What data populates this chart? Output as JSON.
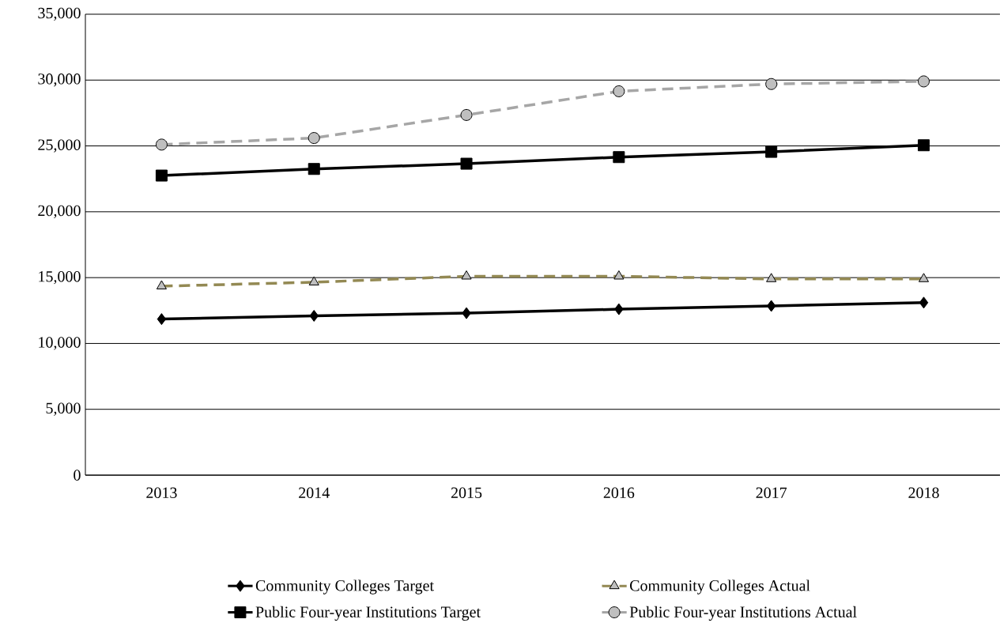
{
  "chart_data": {
    "type": "line",
    "categories": [
      "2013",
      "2014",
      "2015",
      "2016",
      "2017",
      "2018"
    ],
    "series": [
      {
        "name": "Community Colleges Target",
        "color": "#000000",
        "marker": "diamond",
        "line_style": "solid",
        "values": [
          11850,
          12100,
          12300,
          12600,
          12850,
          13100
        ]
      },
      {
        "name": "Community Colleges Actual",
        "color": "#938953",
        "marker": "triangle",
        "line_style": "dashed",
        "values": [
          14350,
          14650,
          15100,
          15100,
          14900,
          14900
        ]
      },
      {
        "name": "Public Four-year Institutions Target",
        "color": "#000000",
        "marker": "square",
        "line_style": "solid",
        "values": [
          22750,
          23250,
          23650,
          24150,
          24550,
          25050
        ]
      },
      {
        "name": "Public Four-year Institutions Actual",
        "color": "#a6a6a6",
        "marker": "circle",
        "line_style": "dashed",
        "values": [
          25100,
          25600,
          27350,
          29150,
          29700,
          29900
        ]
      }
    ],
    "ylim": [
      0,
      35000
    ],
    "yticks": [
      {
        "value": 0,
        "label": "0"
      },
      {
        "value": 5000,
        "label": "5,000"
      },
      {
        "value": 10000,
        "label": "10,000"
      },
      {
        "value": 15000,
        "label": "15,000"
      },
      {
        "value": 20000,
        "label": "20,000"
      },
      {
        "value": 25000,
        "label": "25,000"
      },
      {
        "value": 30000,
        "label": "30,000"
      },
      {
        "value": 35000,
        "label": "35,000"
      }
    ],
    "grid": "y",
    "legend": "bottom"
  }
}
